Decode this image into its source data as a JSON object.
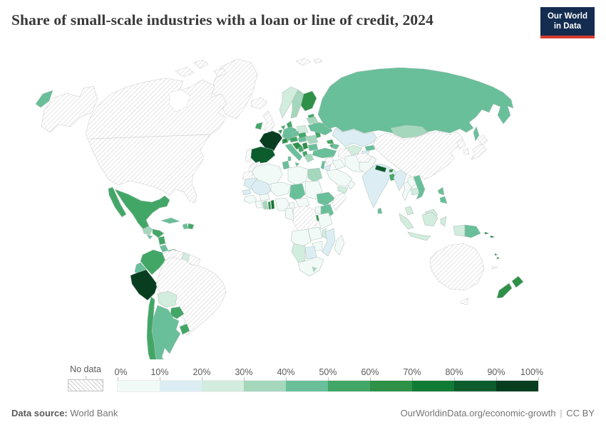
{
  "header": {
    "title": "Share of small-scale industries with a loan or line of credit, 2024",
    "logo_line1": "Our World",
    "logo_line2": "in Data",
    "logo_bg": "#132c4f",
    "logo_accent": "#d73b30"
  },
  "legend": {
    "no_data_label": "No data",
    "tick_labels": [
      "0%",
      "10%",
      "20%",
      "30%",
      "40%",
      "50%",
      "60%",
      "70%",
      "80%",
      "90%",
      "100%"
    ]
  },
  "footer": {
    "source_label": "Data source:",
    "source_value": "World Bank",
    "url": "OurWorldinData.org/economic-growth",
    "separator": "|",
    "license": "CC BY"
  },
  "chart_data": {
    "type": "choropleth",
    "title": "Share of small-scale industries with a loan or line of credit, 2024",
    "unit": "%",
    "range": [
      0,
      100
    ],
    "legend_position": "bottom",
    "bands": [
      {
        "min": 0,
        "max": 10,
        "color": "#f2faf7"
      },
      {
        "min": 10,
        "max": 20,
        "color": "#dceef4"
      },
      {
        "min": 20,
        "max": 30,
        "color": "#d2ecdd"
      },
      {
        "min": 30,
        "max": 40,
        "color": "#a5d7bd"
      },
      {
        "min": 40,
        "max": 50,
        "color": "#69bf9a"
      },
      {
        "min": 50,
        "max": 60,
        "color": "#42a766"
      },
      {
        "min": 60,
        "max": 70,
        "color": "#2e9147"
      },
      {
        "min": 70,
        "max": 80,
        "color": "#107b35"
      },
      {
        "min": 80,
        "max": 90,
        "color": "#0c5c2e"
      },
      {
        "min": 90,
        "max": 100,
        "color": "#093d20"
      }
    ],
    "countries": [
      {
        "key": "canada-usa",
        "name": "United States & Canada",
        "value": null
      },
      {
        "key": "alaska",
        "name": "Alaska (United States)",
        "value": null
      },
      {
        "key": "greenland",
        "name": "Greenland",
        "value": null
      },
      {
        "key": "mexico",
        "name": "Mexico",
        "value": 55
      },
      {
        "key": "guatemala",
        "name": "Guatemala",
        "value": 35
      },
      {
        "key": "el-salvador",
        "name": "El Salvador",
        "value": 45
      },
      {
        "key": "honduras",
        "name": "Honduras",
        "value": 55
      },
      {
        "key": "nicaragua",
        "name": "Nicaragua",
        "value": 55
      },
      {
        "key": "costa-rica",
        "name": "Costa Rica",
        "value": 45
      },
      {
        "key": "panama",
        "name": "Panama",
        "value": 55
      },
      {
        "key": "cuba",
        "name": "Cuba",
        "value": 45
      },
      {
        "key": "haiti",
        "name": "Haiti",
        "value": 45
      },
      {
        "key": "dominican-republic",
        "name": "Dominican Republic",
        "value": 55
      },
      {
        "key": "colombia",
        "name": "Colombia",
        "value": 55
      },
      {
        "key": "venezuela",
        "name": "Venezuela",
        "value": null
      },
      {
        "key": "guyana",
        "name": "Guyana",
        "value": 25
      },
      {
        "key": "suriname-guiana",
        "name": "Suriname & French Guiana",
        "value": null
      },
      {
        "key": "ecuador",
        "name": "Ecuador",
        "value": 45
      },
      {
        "key": "peru",
        "name": "Peru",
        "value": 95
      },
      {
        "key": "brazil",
        "name": "Brazil",
        "value": null
      },
      {
        "key": "bolivia",
        "name": "Bolivia",
        "value": 25
      },
      {
        "key": "paraguay",
        "name": "Paraguay",
        "value": 55
      },
      {
        "key": "chile",
        "name": "Chile",
        "value": 55
      },
      {
        "key": "argentina",
        "name": "Argentina",
        "value": 45
      },
      {
        "key": "uruguay",
        "name": "Uruguay",
        "value": 55
      },
      {
        "key": "iceland",
        "name": "Iceland",
        "value": null
      },
      {
        "key": "united-kingdom",
        "name": "United Kingdom",
        "value": null
      },
      {
        "key": "ireland",
        "name": "Ireland",
        "value": 55
      },
      {
        "key": "portugal",
        "name": "Portugal",
        "value": null
      },
      {
        "key": "spain",
        "name": "Spain",
        "value": 84
      },
      {
        "key": "france",
        "name": "France",
        "value": 92
      },
      {
        "key": "belgium",
        "name": "Belgium",
        "value": 65
      },
      {
        "key": "netherlands",
        "name": "Netherlands",
        "value": 55
      },
      {
        "key": "germany",
        "name": "Germany",
        "value": 45
      },
      {
        "key": "denmark",
        "name": "Denmark",
        "value": 55
      },
      {
        "key": "norway",
        "name": "Norway",
        "value": 25
      },
      {
        "key": "sweden",
        "name": "Sweden",
        "value": 35
      },
      {
        "key": "finland",
        "name": "Finland",
        "value": 65
      },
      {
        "key": "baltics",
        "name": "Baltic states (Estonia, Latvia, Lithuania)",
        "value": 55
      },
      {
        "key": "poland",
        "name": "Poland",
        "value": 25
      },
      {
        "key": "czechia",
        "name": "Czechia",
        "value": 45
      },
      {
        "key": "slovakia",
        "name": "Slovakia",
        "value": 55
      },
      {
        "key": "austria",
        "name": "Austria",
        "value": 55
      },
      {
        "key": "switzerland",
        "name": "Switzerland",
        "value": 65
      },
      {
        "key": "italy",
        "name": "Italy",
        "value": 45
      },
      {
        "key": "slovenia-croatia",
        "name": "Slovenia & Croatia",
        "value": 65
      },
      {
        "key": "bosnia",
        "name": "Bosnia and Herzegovina",
        "value": 55
      },
      {
        "key": "serbia",
        "name": "Serbia",
        "value": 65
      },
      {
        "key": "albania-macedonia",
        "name": "Albania & North Macedonia",
        "value": 55
      },
      {
        "key": "greece",
        "name": "Greece",
        "value": 35
      },
      {
        "key": "hungary",
        "name": "Hungary",
        "value": 45
      },
      {
        "key": "romania",
        "name": "Romania",
        "value": 35
      },
      {
        "key": "bulgaria",
        "name": "Bulgaria",
        "value": 45
      },
      {
        "key": "moldova",
        "name": "Moldova",
        "value": 55
      },
      {
        "key": "ukraine",
        "name": "Ukraine",
        "value": 45
      },
      {
        "key": "belarus",
        "name": "Belarus",
        "value": 35
      },
      {
        "key": "russia",
        "name": "Russia",
        "value": 45
      },
      {
        "key": "svalbard",
        "name": "Svalbard",
        "value": null
      },
      {
        "key": "kazakhstan",
        "name": "Kazakhstan",
        "value": 15
      },
      {
        "key": "uzbekistan",
        "name": "Uzbekistan",
        "value": 25
      },
      {
        "key": "turkmenistan",
        "name": "Turkmenistan",
        "value": null
      },
      {
        "key": "kyrgyzstan",
        "name": "Kyrgyzstan",
        "value": 45
      },
      {
        "key": "tajikistan",
        "name": "Tajikistan",
        "value": 15
      },
      {
        "key": "georgia",
        "name": "Georgia",
        "value": 55
      },
      {
        "key": "armenia",
        "name": "Armenia",
        "value": 55
      },
      {
        "key": "azerbaijan",
        "name": "Azerbaijan",
        "value": 45
      },
      {
        "key": "turkey",
        "name": "Turkey",
        "value": 45
      },
      {
        "key": "cyprus",
        "name": "Cyprus",
        "value": 45
      },
      {
        "key": "syria",
        "name": "Syria",
        "value": null
      },
      {
        "key": "lebanon-israel",
        "name": "Israel & Lebanon",
        "value": 45
      },
      {
        "key": "jordan",
        "name": "Jordan",
        "value": 15
      },
      {
        "key": "iraq",
        "name": "Iraq",
        "value": 5
      },
      {
        "key": "iran",
        "name": "Iran",
        "value": 5
      },
      {
        "key": "saudi-arabia",
        "name": "Saudi Arabia",
        "value": 5
      },
      {
        "key": "yemen",
        "name": "Yemen",
        "value": 25
      },
      {
        "key": "oman",
        "name": "Oman",
        "value": 5
      },
      {
        "key": "afghanistan",
        "name": "Afghanistan",
        "value": null
      },
      {
        "key": "pakistan",
        "name": "Pakistan",
        "value": 5
      },
      {
        "key": "india",
        "name": "India",
        "value": 15
      },
      {
        "key": "nepal",
        "name": "Nepal",
        "value": 85
      },
      {
        "key": "bhutan",
        "name": "Bhutan",
        "value": 65
      },
      {
        "key": "bangladesh",
        "name": "Bangladesh",
        "value": 55
      },
      {
        "key": "sri-lanka",
        "name": "Sri Lanka",
        "value": 45
      },
      {
        "key": "myanmar",
        "name": "Myanmar",
        "value": 15
      },
      {
        "key": "thailand",
        "name": "Thailand",
        "value": 5
      },
      {
        "key": "laos",
        "name": "Laos",
        "value": 5
      },
      {
        "key": "cambodia",
        "name": "Cambodia",
        "value": 25
      },
      {
        "key": "vietnam",
        "name": "Vietnam",
        "value": 45
      },
      {
        "key": "malaysia",
        "name": "Malaysia",
        "value": 25
      },
      {
        "key": "indonesia",
        "name": "Indonesia",
        "value": 25
      },
      {
        "key": "philippines",
        "name": "Philippines",
        "value": 45
      },
      {
        "key": "china",
        "name": "China",
        "value": null
      },
      {
        "key": "mongolia",
        "name": "Mongolia",
        "value": 35
      },
      {
        "key": "north-korea",
        "name": "North Korea",
        "value": null
      },
      {
        "key": "south-korea",
        "name": "South Korea",
        "value": null
      },
      {
        "key": "japan",
        "name": "Japan",
        "value": null
      },
      {
        "key": "papua-new-guinea",
        "name": "Papua New Guinea",
        "value": 45
      },
      {
        "key": "solomon-islands",
        "name": "Solomon Islands",
        "value": 75
      },
      {
        "key": "vanuatu",
        "name": "Vanuatu",
        "value": 65
      },
      {
        "key": "new-caledonia",
        "name": "New Caledonia",
        "value": null
      },
      {
        "key": "australia",
        "name": "Australia",
        "value": null
      },
      {
        "key": "new-zealand",
        "name": "New Zealand",
        "value": 65
      },
      {
        "key": "morocco",
        "name": "Morocco",
        "value": null
      },
      {
        "key": "western-sahara",
        "name": "Western Sahara",
        "value": null
      },
      {
        "key": "algeria",
        "name": "Algeria",
        "value": 5
      },
      {
        "key": "tunisia",
        "name": "Tunisia",
        "value": 45
      },
      {
        "key": "libya",
        "name": "Libya",
        "value": 5
      },
      {
        "key": "egypt",
        "name": "Egypt",
        "value": 35
      },
      {
        "key": "mauritania",
        "name": "Mauritania",
        "value": 15
      },
      {
        "key": "mali",
        "name": "Mali",
        "value": 15
      },
      {
        "key": "niger",
        "name": "Niger",
        "value": 5
      },
      {
        "key": "chad",
        "name": "Chad",
        "value": 45
      },
      {
        "key": "sudan",
        "name": "Sudan",
        "value": 5
      },
      {
        "key": "senegal",
        "name": "Senegal",
        "value": 15
      },
      {
        "key": "guinea-region",
        "name": "Guinea, Sierra Leone & Liberia",
        "value": 5
      },
      {
        "key": "ivory-coast",
        "name": "Cote d'Ivoire",
        "value": 5
      },
      {
        "key": "ghana",
        "name": "Ghana",
        "value": 35
      },
      {
        "key": "togo",
        "name": "Togo",
        "value": 65
      },
      {
        "key": "benin",
        "name": "Benin",
        "value": 75
      },
      {
        "key": "burkina-faso",
        "name": "Burkina Faso",
        "value": 5
      },
      {
        "key": "nigeria",
        "name": "Nigeria",
        "value": 5
      },
      {
        "key": "cameroon",
        "name": "Cameroon",
        "value": 5
      },
      {
        "key": "central-african-republic",
        "name": "Central African Republic",
        "value": 5
      },
      {
        "key": "ethiopia",
        "name": "Ethiopia",
        "value": 45
      },
      {
        "key": "somalia",
        "name": "Somalia",
        "value": null
      },
      {
        "key": "kenya",
        "name": "Kenya",
        "value": 45
      },
      {
        "key": "uganda",
        "name": "Uganda",
        "value": 5
      },
      {
        "key": "rwanda-burundi",
        "name": "Rwanda & Burundi",
        "value": 65
      },
      {
        "key": "dr-congo",
        "name": "Democratic Republic of Congo",
        "value": null
      },
      {
        "key": "congo-gabon",
        "name": "Congo & Gabon",
        "value": 5
      },
      {
        "key": "tanzania",
        "name": "Tanzania",
        "value": 5
      },
      {
        "key": "angola",
        "name": "Angola",
        "value": 5
      },
      {
        "key": "zambia",
        "name": "Zambia",
        "value": 5
      },
      {
        "key": "malawi",
        "name": "Malawi",
        "value": 25
      },
      {
        "key": "mozambique",
        "name": "Mozambique",
        "value": 15
      },
      {
        "key": "zimbabwe",
        "name": "Zimbabwe",
        "value": 5
      },
      {
        "key": "botswana",
        "name": "Botswana",
        "value": 15
      },
      {
        "key": "namibia",
        "name": "Namibia",
        "value": 25
      },
      {
        "key": "south-africa",
        "name": "South Africa",
        "value": 5
      },
      {
        "key": "lesotho",
        "name": "Lesotho",
        "value": 35
      },
      {
        "key": "madagascar",
        "name": "Madagascar",
        "value": 5
      }
    ]
  }
}
